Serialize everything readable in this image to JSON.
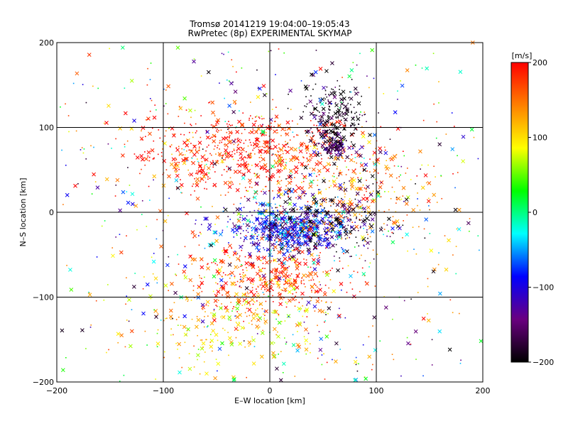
{
  "chart_data": {
    "type": "scatter",
    "title": "Tromsø 20141219 19:04:00–19:05:43",
    "subtitle": "RwPretec (8p) EXPERIMENTAL SKYMAP",
    "xlabel": "E–W location [km]",
    "ylabel": "N–S location [km]",
    "xlim": [
      -200,
      200
    ],
    "ylim": [
      -200,
      200
    ],
    "xticks": [
      -200,
      -100,
      0,
      100,
      200
    ],
    "yticks": [
      -200,
      -100,
      0,
      100,
      200
    ],
    "grid": true,
    "colorbar": {
      "label": "[m/s]",
      "range": [
        -200,
        200
      ],
      "ticks": [
        200,
        100,
        0,
        -100,
        -200
      ],
      "colormap": [
        "#000000",
        "#6a0080",
        "#0000ff",
        "#00ffff",
        "#00ff00",
        "#ffff00",
        "#ff8000",
        "#ff0000"
      ]
    },
    "clusters": [
      {
        "x": -20,
        "y": 70,
        "sx": 55,
        "sy": 25,
        "velocity": 190,
        "n": 700
      },
      {
        "x": 15,
        "y": -20,
        "sx": 28,
        "sy": 12,
        "velocity": -90,
        "n": 650
      },
      {
        "x": 60,
        "y": 115,
        "sx": 14,
        "sy": 20,
        "velocity": -200,
        "n": 200
      },
      {
        "x": 60,
        "y": 80,
        "sx": 8,
        "sy": 8,
        "velocity": -160,
        "n": 130
      },
      {
        "x": 0,
        "y": -80,
        "sx": 35,
        "sy": 20,
        "velocity": 180,
        "n": 400
      },
      {
        "x": 80,
        "y": 20,
        "sx": 40,
        "sy": 30,
        "velocity": 140,
        "n": 250
      },
      {
        "x": 50,
        "y": -10,
        "sx": 35,
        "sy": 25,
        "velocity": -190,
        "n": 250
      },
      {
        "x": -30,
        "y": -130,
        "sx": 50,
        "sy": 30,
        "velocity": 110,
        "n": 250
      },
      {
        "x": 0,
        "y": 0,
        "sx": 140,
        "sy": 140,
        "velocity": 0,
        "n": 900
      }
    ]
  }
}
